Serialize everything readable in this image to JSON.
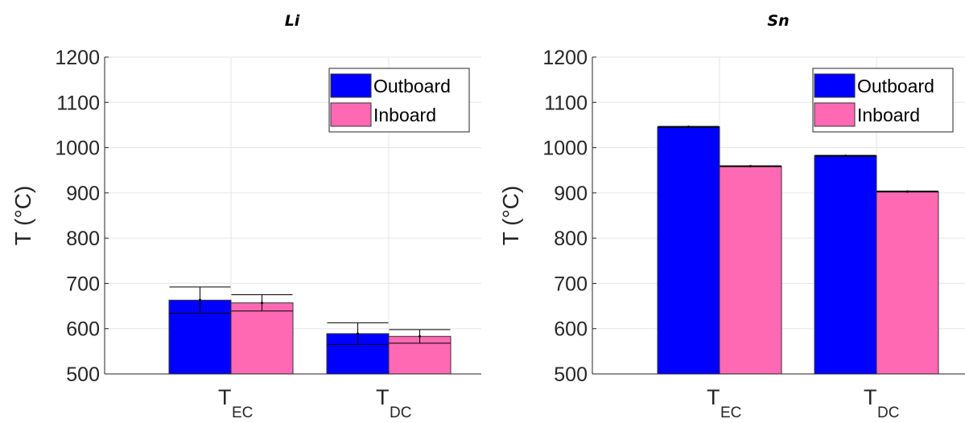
{
  "colors": {
    "outboard": "#0000ff",
    "inboard": "#ff69b4"
  },
  "chart_data": [
    {
      "type": "bar",
      "title": "Li",
      "ylabel": "T (°C)",
      "ylim": [
        500,
        1200
      ],
      "yticks": [
        "500",
        "600",
        "700",
        "800",
        "900",
        "1000",
        "1100",
        "1200"
      ],
      "categories": [
        {
          "main": "T",
          "sub": "EC"
        },
        {
          "main": "T",
          "sub": "DC"
        }
      ],
      "series": [
        {
          "name": "Outboard",
          "values": [
            663,
            589
          ],
          "errors": [
            29,
            24
          ]
        },
        {
          "name": "Inboard",
          "values": [
            657,
            583
          ],
          "errors": [
            18,
            15
          ]
        }
      ],
      "grid": true,
      "legend": "top-right"
    },
    {
      "type": "bar",
      "title": "Sn",
      "ylabel": "T (°C)",
      "ylim": [
        500,
        1200
      ],
      "yticks": [
        "500",
        "600",
        "700",
        "800",
        "900",
        "1000",
        "1100",
        "1200"
      ],
      "categories": [
        {
          "main": "T",
          "sub": "EC"
        },
        {
          "main": "T",
          "sub": "DC"
        }
      ],
      "series": [
        {
          "name": "Outboard",
          "values": [
            1046,
            982
          ],
          "errors": [
            1,
            1
          ]
        },
        {
          "name": "Inboard",
          "values": [
            959,
            903
          ],
          "errors": [
            1,
            1
          ]
        }
      ],
      "grid": true,
      "legend": "top-right"
    }
  ]
}
